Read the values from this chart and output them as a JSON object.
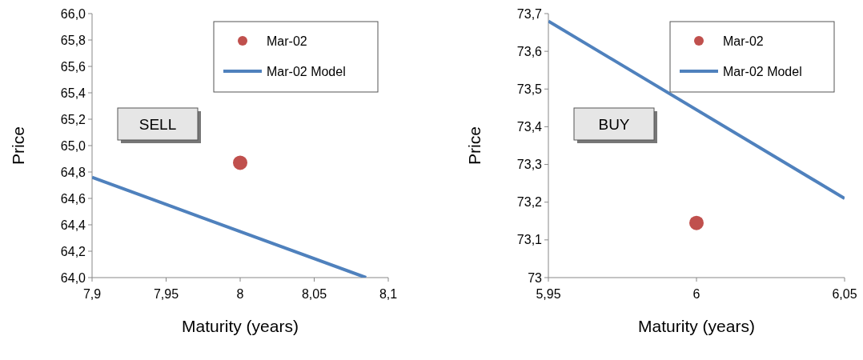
{
  "chart_data": [
    {
      "type": "scatter",
      "xlabel": "Maturity (years)",
      "ylabel": "Price",
      "xlim": [
        7.9,
        8.1
      ],
      "ylim": [
        64.0,
        66.0
      ],
      "xticks": [
        {
          "value": 7.9,
          "label": "7,9"
        },
        {
          "value": 7.95,
          "label": "7,95"
        },
        8,
        {
          "value": 8.05,
          "label": "8,05"
        },
        {
          "value": 8.1,
          "label": "8,1"
        }
      ],
      "yticks": [
        {
          "value": 64.0,
          "label": "64,0"
        },
        {
          "value": 64.2,
          "label": "64,2"
        },
        {
          "value": 64.4,
          "label": "64,4"
        },
        {
          "value": 64.6,
          "label": "64,6"
        },
        {
          "value": 64.8,
          "label": "64,8"
        },
        {
          "value": 65.0,
          "label": "65,0"
        },
        {
          "value": 65.2,
          "label": "65,2"
        },
        {
          "value": 65.4,
          "label": "65,4"
        },
        {
          "value": 65.6,
          "label": "65,6"
        },
        {
          "value": 65.8,
          "label": "65,8"
        },
        {
          "value": 66.0,
          "label": "66,0"
        }
      ],
      "grid": false,
      "legend": "top right",
      "annotations": [
        "SELL"
      ],
      "series": [
        {
          "name": "Mar-02",
          "marker": "circle",
          "color": "#c0504d",
          "x": [
            8
          ],
          "values": [
            64.87
          ]
        },
        {
          "name": "Mar-02 Model",
          "type": "line",
          "color": "#4f81bd",
          "x": [
            7.9,
            8.085
          ],
          "values": [
            64.76,
            64.0
          ]
        }
      ]
    },
    {
      "type": "scatter",
      "xlabel": "Maturity (years)",
      "ylabel": "Price",
      "xlim": [
        5.95,
        6.05
      ],
      "ylim": [
        73.0,
        73.7
      ],
      "xticks": [
        {
          "value": 5.95,
          "label": "5,95"
        },
        6,
        {
          "value": 6.05,
          "label": "6,05"
        }
      ],
      "yticks": [
        73,
        {
          "value": 73.1,
          "label": "73,1"
        },
        {
          "value": 73.2,
          "label": "73,2"
        },
        {
          "value": 73.3,
          "label": "73,3"
        },
        {
          "value": 73.4,
          "label": "73,4"
        },
        {
          "value": 73.5,
          "label": "73,5"
        },
        {
          "value": 73.6,
          "label": "73,6"
        },
        {
          "value": 73.7,
          "label": "73,7"
        }
      ],
      "grid": false,
      "legend": "top right",
      "annotations": [
        "BUY"
      ],
      "series": [
        {
          "name": "Mar-02",
          "marker": "circle",
          "color": "#c0504d",
          "x": [
            6
          ],
          "values": [
            73.145
          ]
        },
        {
          "name": "Mar-02 Model",
          "type": "line",
          "color": "#4f81bd",
          "x": [
            5.95,
            6.05
          ],
          "values": [
            73.68,
            73.21
          ]
        }
      ]
    }
  ]
}
